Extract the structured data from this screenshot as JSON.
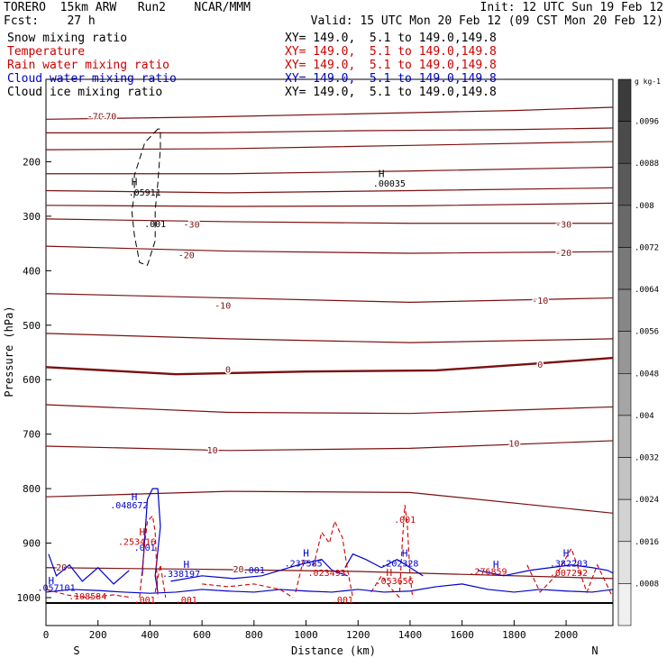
{
  "header": {
    "model": "TORERO  15km ARW   Run2    NCAR/MMM",
    "init": "Init: 12 UTC Sun 19 Feb 12",
    "fcst": "Fcst:    27 h",
    "valid": "Valid: 15 UTC Mon 20 Feb 12 (09 CST Mon 20 Feb 12)"
  },
  "fields": [
    {
      "name": "Snow mixing ratio",
      "range": "XY= 149.0,  5.1 to 149.0,149.8",
      "color": "#000000"
    },
    {
      "name": "Temperature",
      "range": "XY= 149.0,  5.1 to 149.0,149.8",
      "color": "#cc0000"
    },
    {
      "name": "Rain water mixing ratio",
      "range": "XY= 149.0,  5.1 to 149.0,149.8",
      "color": "#cc0000"
    },
    {
      "name": "Cloud water mixing ratio",
      "range": "XY= 149.0,  5.1 to 149.0,149.8",
      "color": "#0000cc"
    },
    {
      "name": "Cloud ice mixing ratio",
      "range": "XY= 149.0,  5.1 to 149.0,149.8",
      "color": "#000000"
    }
  ],
  "colors": {
    "temperature": "#7a1010",
    "rain": "#cc0000",
    "cloud_water": "#0000cc",
    "snow": "#000000",
    "colorbar_dark": "#333333",
    "colorbar_light": "#f0f0f0"
  },
  "chart_data": {
    "type": "line",
    "title": "",
    "xlabel": "Distance (km)",
    "ylabel": "Pressure (hPa)",
    "xlim": [
      0,
      2180
    ],
    "ylim": [
      1050,
      85
    ],
    "x_ticks": [
      0,
      200,
      400,
      600,
      800,
      1000,
      1200,
      1400,
      1600,
      1800,
      2000
    ],
    "y_ticks": [
      200,
      300,
      400,
      500,
      600,
      700,
      800,
      900,
      1000
    ],
    "x_end_labels": {
      "left": "S",
      "right": "N"
    },
    "colorbar": {
      "unit": "g kg-1",
      "ticks": [
        ".0096",
        ".0088",
        ".008",
        ".0072",
        ".0064",
        ".0056",
        ".0048",
        ".004",
        ".0032",
        ".0024",
        ".0016",
        ".0008"
      ]
    },
    "temperature_contours": [
      {
        "level": "-70",
        "points": [
          [
            0,
            122
          ],
          [
            600,
            118
          ],
          [
            1200,
            112
          ],
          [
            1800,
            106
          ],
          [
            2180,
            100
          ]
        ],
        "labels": [
          [
            190,
            117
          ],
          [
            240,
            117
          ]
        ]
      },
      {
        "level": "",
        "points": [
          [
            0,
            147
          ],
          [
            600,
            147
          ],
          [
            1200,
            143
          ],
          [
            1800,
            141
          ],
          [
            2180,
            138
          ]
        ],
        "labels": []
      },
      {
        "level": "",
        "points": [
          [
            0,
            178
          ],
          [
            700,
            176
          ],
          [
            1400,
            170
          ],
          [
            2180,
            163
          ]
        ],
        "labels": []
      },
      {
        "level": "",
        "points": [
          [
            0,
            222
          ],
          [
            700,
            222
          ],
          [
            1400,
            217
          ],
          [
            2180,
            210
          ]
        ],
        "labels": []
      },
      {
        "level": "",
        "points": [
          [
            0,
            253
          ],
          [
            700,
            257
          ],
          [
            1400,
            253
          ],
          [
            2180,
            248
          ]
        ],
        "labels": []
      },
      {
        "level": "",
        "points": [
          [
            0,
            280
          ],
          [
            700,
            282
          ],
          [
            1400,
            281
          ],
          [
            2180,
            276
          ]
        ],
        "labels": []
      },
      {
        "level": "-30",
        "points": [
          [
            0,
            305
          ],
          [
            700,
            310
          ],
          [
            1400,
            313
          ],
          [
            2180,
            313
          ]
        ],
        "labels": [
          [
            560,
            316
          ],
          [
            1990,
            316
          ]
        ]
      },
      {
        "level": "-20",
        "points": [
          [
            0,
            355
          ],
          [
            700,
            364
          ],
          [
            1400,
            368
          ],
          [
            2180,
            365
          ]
        ],
        "labels": [
          [
            540,
            372
          ],
          [
            1990,
            368
          ]
        ]
      },
      {
        "level": "-10",
        "points": [
          [
            0,
            442
          ],
          [
            700,
            450
          ],
          [
            1400,
            458
          ],
          [
            2180,
            450
          ]
        ],
        "labels": [
          [
            680,
            465
          ],
          [
            1900,
            456
          ]
        ]
      },
      {
        "level": "",
        "points": [
          [
            0,
            515
          ],
          [
            700,
            525
          ],
          [
            1400,
            532
          ],
          [
            2180,
            525
          ]
        ],
        "labels": []
      },
      {
        "level": "0",
        "points": [
          [
            0,
            577
          ],
          [
            500,
            590
          ],
          [
            1000,
            585
          ],
          [
            1500,
            583
          ],
          [
            1900,
            570
          ],
          [
            2180,
            560
          ]
        ],
        "labels": [
          [
            700,
            582
          ],
          [
            1900,
            573
          ]
        ]
      },
      {
        "level": "",
        "points": [
          [
            0,
            646
          ],
          [
            700,
            660
          ],
          [
            1400,
            662
          ],
          [
            2180,
            650
          ]
        ],
        "labels": []
      },
      {
        "level": "10",
        "points": [
          [
            0,
            722
          ],
          [
            700,
            730
          ],
          [
            1400,
            726
          ],
          [
            2180,
            712
          ]
        ],
        "labels": [
          [
            640,
            730
          ],
          [
            1800,
            718
          ]
        ]
      },
      {
        "level": "",
        "points": [
          [
            0,
            815
          ],
          [
            700,
            805
          ],
          [
            1400,
            807
          ],
          [
            2180,
            845
          ]
        ],
        "labels": []
      },
      {
        "level": "20",
        "points": [
          [
            0,
            945
          ],
          [
            600,
            948
          ],
          [
            1200,
            952
          ],
          [
            2180,
            965
          ]
        ],
        "labels": [
          [
            60,
            945
          ],
          [
            740,
            949
          ]
        ]
      }
    ],
    "rain_labels": [
      {
        "text": ".001",
        "x": 1380,
        "y": 863
      },
      {
        "text": ".001",
        "x": 1140,
        "y": 1010
      },
      {
        "text": ".001",
        "x": 540,
        "y": 1010
      },
      {
        "text": ".023493",
        "x": 1080,
        "y": 960
      },
      {
        "text": ".053656",
        "x": 1340,
        "y": 975
      },
      {
        "text": ".276859",
        "x": 1700,
        "y": 958
      },
      {
        "text": ".007292",
        "x": 2010,
        "y": 960
      },
      {
        "text": ".253416",
        "x": 350,
        "y": 903
      },
      {
        "text": ".108584",
        "x": 160,
        "y": 1003
      },
      {
        "text": ".001",
        "x": 380,
        "y": 1010
      }
    ],
    "cloud_labels": [
      {
        "text": ".048672",
        "x": 320,
        "y": 836
      },
      {
        "text": ".237585",
        "x": 990,
        "y": 943
      },
      {
        "text": ".202328",
        "x": 1360,
        "y": 943
      },
      {
        "text": ".382203",
        "x": 2010,
        "y": 943
      },
      {
        "text": ".338197",
        "x": 520,
        "y": 962
      },
      {
        "text": ".057101",
        "x": 40,
        "y": 988
      },
      {
        "text": ".001",
        "x": 800,
        "y": 955
      },
      {
        "text": ".001",
        "x": 380,
        "y": 914
      }
    ],
    "max_markers": [
      {
        "text": "H",
        "x": 340,
        "y": 821,
        "color": "#0000cc"
      },
      {
        "text": "H",
        "x": 370,
        "y": 886,
        "color": "#cc0000"
      },
      {
        "text": "H",
        "x": 540,
        "y": 945,
        "color": "#0000cc"
      },
      {
        "text": "H",
        "x": 1000,
        "y": 925,
        "color": "#0000cc"
      },
      {
        "text": "H",
        "x": 1380,
        "y": 925,
        "color": "#0000cc"
      },
      {
        "text": "H",
        "x": 1730,
        "y": 945,
        "color": "#0000cc"
      },
      {
        "text": "H",
        "x": 2000,
        "y": 925,
        "color": "#0000cc"
      },
      {
        "text": "H",
        "x": 20,
        "y": 975,
        "color": "#0000cc"
      },
      {
        "text": "H",
        "x": 1320,
        "y": 960,
        "color": "#cc0000"
      },
      {
        "text": "H",
        "x": 340,
        "y": 243,
        "color": "#000000"
      },
      {
        "text": "H",
        "x": 1290,
        "y": 228,
        "color": "#000000"
      }
    ],
    "snow_labels": [
      {
        "text": ".05911",
        "x": 380,
        "y": 262
      },
      {
        "text": ".00035",
        "x": 1320,
        "y": 246
      },
      {
        "text": ".001",
        "x": 420,
        "y": 320
      }
    ]
  }
}
